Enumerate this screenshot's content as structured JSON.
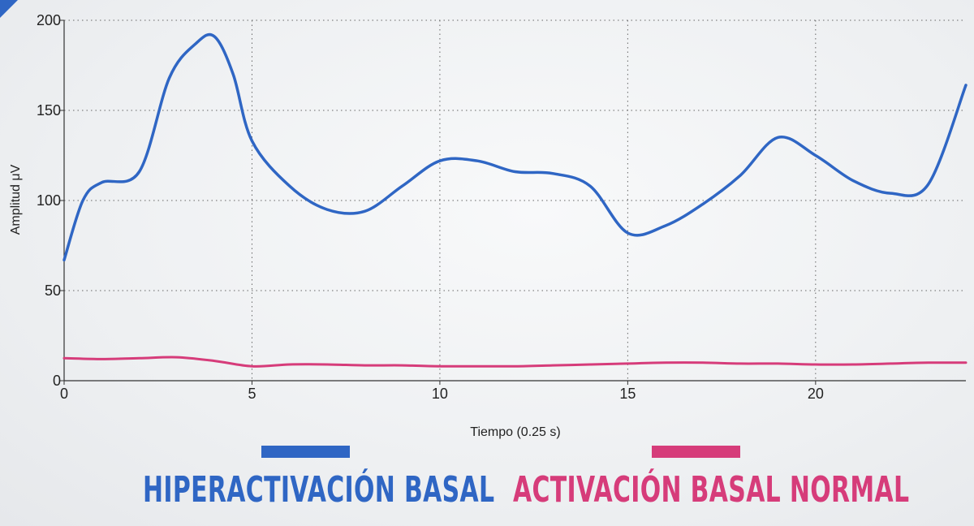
{
  "chart_data": {
    "type": "line",
    "xlabel": "Tiempo (0.25 s)",
    "ylabel": "Amplitud μV",
    "xlim": [
      0,
      24
    ],
    "ylim": [
      0,
      200
    ],
    "xticks": [
      0,
      5,
      10,
      15,
      20
    ],
    "yticks": [
      0,
      50,
      100,
      150,
      200
    ],
    "grid": true,
    "legend_placement": "bottom",
    "series": [
      {
        "name": "HIPERACTIVACIÓN BASAL",
        "color": "#2f66c4",
        "x": [
          0,
          0.5,
          1,
          2,
          2.8,
          3.5,
          4,
          4.5,
          5,
          6,
          7,
          8,
          9,
          10,
          11,
          12,
          13,
          14,
          15,
          16,
          17,
          18,
          19,
          20,
          21,
          22,
          23,
          24
        ],
        "y": [
          67,
          100,
          110,
          116,
          168,
          187,
          191,
          170,
          133,
          108,
          95,
          94,
          108,
          122,
          122,
          116,
          115,
          108,
          82,
          86,
          98,
          114,
          135,
          125,
          111,
          104,
          109,
          164
        ]
      },
      {
        "name": "ACTIVACIÓN BASAL NORMAL",
        "color": "#d63c7a",
        "x": [
          0,
          1,
          2,
          3,
          4,
          5,
          6,
          7,
          8,
          9,
          10,
          11,
          12,
          13,
          14,
          15,
          16,
          17,
          18,
          19,
          20,
          21,
          22,
          23,
          24
        ],
        "y": [
          12.5,
          12,
          12.5,
          13,
          11,
          8,
          9,
          9,
          8.5,
          8.5,
          8,
          8,
          8,
          8.5,
          9,
          9.5,
          10,
          10,
          9.5,
          9.5,
          9,
          9,
          9.5,
          10,
          10
        ]
      }
    ]
  }
}
